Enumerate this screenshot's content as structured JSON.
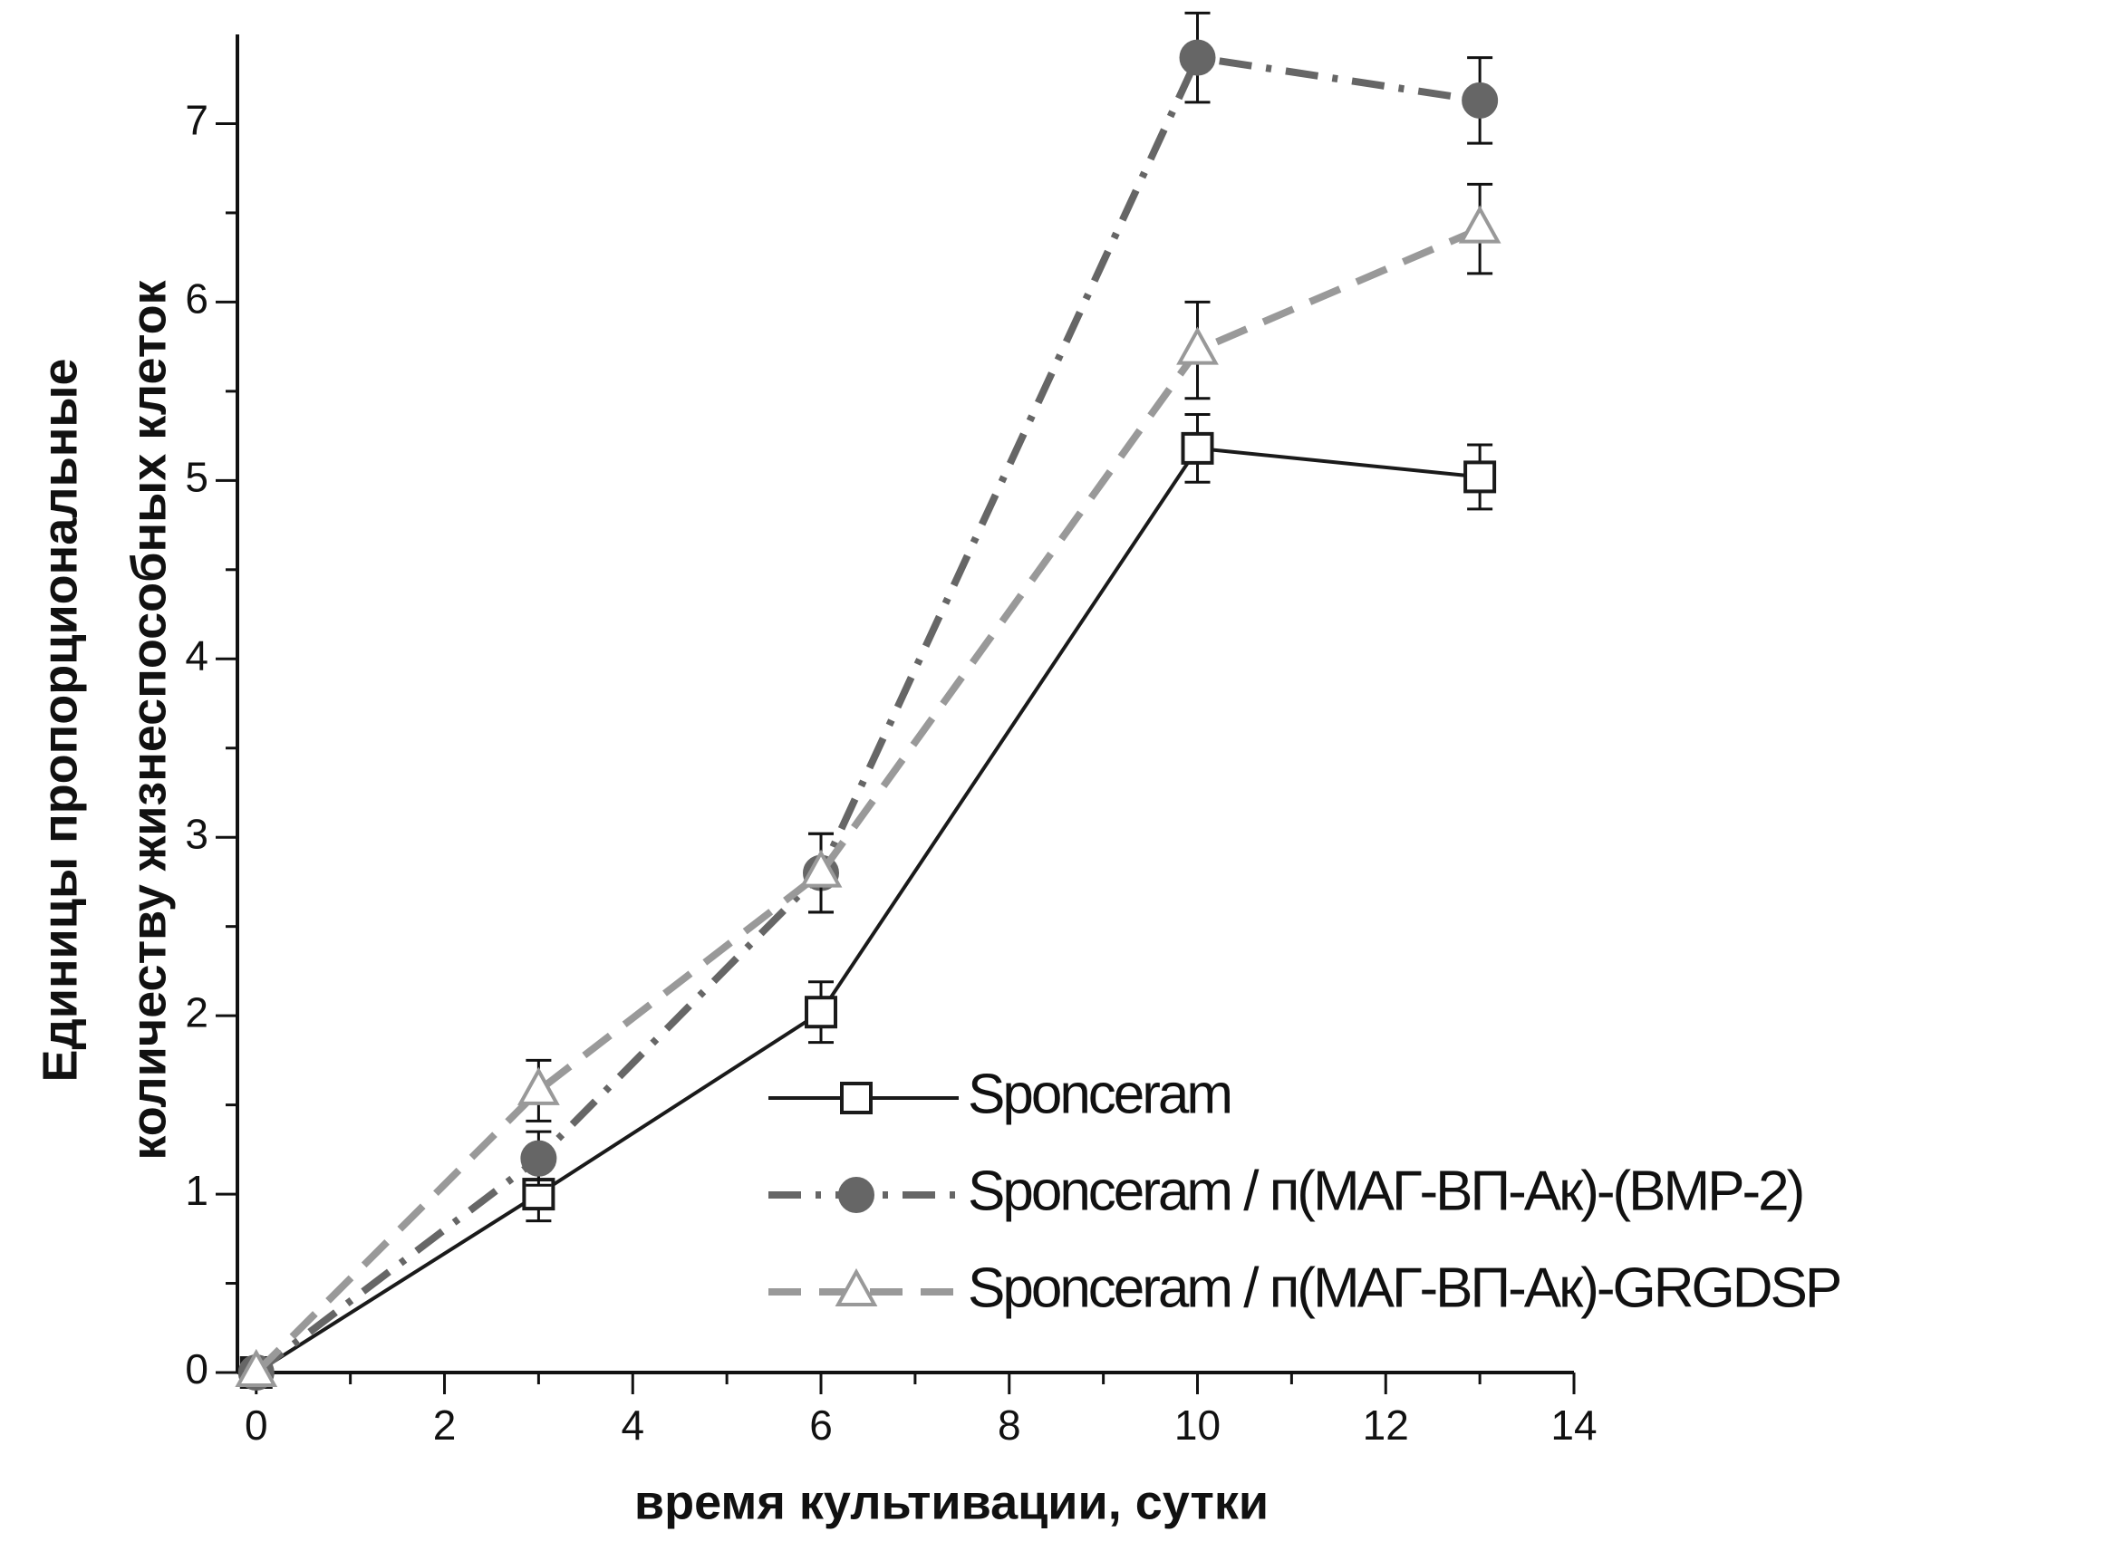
{
  "chart_data": {
    "type": "line",
    "x_label": "время культивации, сутки",
    "y_label": [
      "Единицы пропорциональные",
      "количеству жизнеспособных клеток"
    ],
    "x": [
      0,
      3,
      6,
      10,
      13
    ],
    "series": [
      {
        "name": "Sponceram",
        "color": "#1a1a1a",
        "dash": "solid",
        "marker": "square",
        "marker_fill": false,
        "values": [
          0,
          1.0,
          2.02,
          5.18,
          5.02
        ],
        "errors": [
          0,
          0.15,
          0.17,
          0.19,
          0.18
        ]
      },
      {
        "name": "Sponceram / п(МАГ-ВП-Ак)-(BMP-2)",
        "color": "#666666",
        "dash": "dashdot",
        "marker": "circle",
        "marker_fill": true,
        "values": [
          0,
          1.2,
          2.8,
          7.37,
          7.13
        ],
        "errors": [
          0,
          0.15,
          0.22,
          0.25,
          0.24
        ]
      },
      {
        "name": "Sponceram / п(МАГ-ВП-Ак)-GRGDSP",
        "color": "#999999",
        "dash": "dashed",
        "marker": "triangle",
        "marker_fill": false,
        "values": [
          0,
          1.58,
          2.8,
          5.73,
          6.41
        ],
        "errors": [
          0,
          0.17,
          0.22,
          0.27,
          0.25
        ]
      }
    ],
    "xlim": [
      -0.2,
      14
    ],
    "ylim": [
      0,
      7.5
    ],
    "xticks": [
      0,
      2,
      4,
      6,
      8,
      10,
      12,
      14
    ],
    "xticks_minor": [
      1,
      3,
      5,
      7,
      9,
      11,
      13
    ],
    "yticks": [
      0,
      1,
      2,
      3,
      4,
      5,
      6,
      7
    ],
    "yticks_minor": [
      0.5,
      1.5,
      2.5,
      3.5,
      4.5,
      5.5,
      6.5
    ],
    "grid": false,
    "legend": "lower right"
  }
}
